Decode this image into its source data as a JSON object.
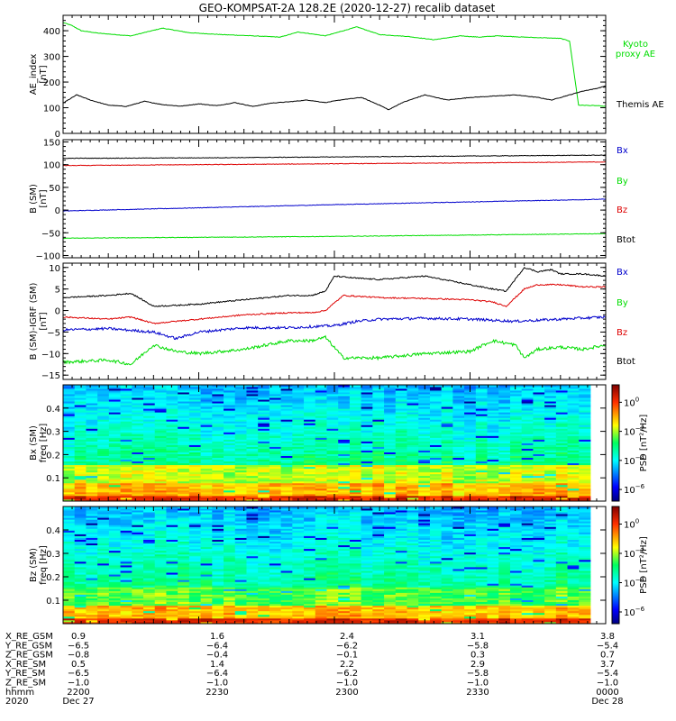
{
  "title": "GEO-KOMPSAT-2A 128.2E (2020-12-27) recalib dataset",
  "colors": {
    "black": "#000000",
    "green": "#00dd00",
    "red": "#dd0000",
    "blue": "#0000cc"
  },
  "chart_data": [
    {
      "type": "line",
      "ylabel_lines": [
        "AE_index",
        "[nT]"
      ],
      "ylim": [
        0,
        460
      ],
      "yticks": [
        0,
        100,
        200,
        300,
        400
      ],
      "x_range_minutes": [
        0,
        120
      ],
      "legend_placement": "right",
      "series": [
        {
          "name": "Kyoto proxy AE",
          "label_lines": [
            "Kyoto",
            "proxy AE"
          ],
          "color": "#00dd00",
          "x": [
            0,
            2,
            4,
            8,
            15,
            22,
            28,
            35,
            42,
            48,
            52,
            58,
            65,
            70,
            76,
            82,
            88,
            92,
            96,
            102,
            110,
            112,
            114,
            118,
            120
          ],
          "y": [
            432,
            420,
            400,
            390,
            380,
            410,
            392,
            385,
            380,
            375,
            395,
            380,
            415,
            385,
            378,
            365,
            380,
            375,
            380,
            375,
            370,
            360,
            110,
            108,
            105
          ]
        },
        {
          "name": "Themis AE",
          "label_lines": [
            "Themis AE"
          ],
          "color": "#000000",
          "x": [
            0,
            3,
            6,
            10,
            14,
            18,
            22,
            26,
            30,
            34,
            38,
            42,
            46,
            50,
            54,
            58,
            62,
            66,
            70,
            72,
            75,
            80,
            85,
            90,
            95,
            100,
            105,
            108,
            112,
            115,
            118,
            120
          ],
          "y": [
            118,
            150,
            130,
            110,
            105,
            125,
            112,
            106,
            115,
            108,
            120,
            105,
            118,
            123,
            130,
            120,
            132,
            140,
            110,
            92,
            120,
            150,
            130,
            140,
            145,
            150,
            140,
            130,
            150,
            165,
            175,
            185
          ]
        }
      ]
    },
    {
      "type": "line",
      "ylabel_lines": [
        "B (SM)",
        "[nT]"
      ],
      "ylim": [
        -105,
        155
      ],
      "yticks": [
        -100,
        -50,
        0,
        50,
        100,
        150
      ],
      "x_range_minutes": [
        0,
        120
      ],
      "legend_placement": "right",
      "series": [
        {
          "name": "Bx",
          "color": "#0000cc",
          "x": [
            0,
            30,
            60,
            90,
            120
          ],
          "y": [
            -2,
            5,
            12,
            18,
            24
          ]
        },
        {
          "name": "By",
          "color": "#00dd00",
          "x": [
            0,
            30,
            60,
            90,
            120
          ],
          "y": [
            -62,
            -60,
            -58,
            -55,
            -52
          ]
        },
        {
          "name": "Bz",
          "color": "#dd0000",
          "x": [
            0,
            30,
            60,
            90,
            120
          ],
          "y": [
            98,
            100,
            102,
            104,
            106
          ]
        },
        {
          "name": "Btot",
          "color": "#000000",
          "x": [
            0,
            30,
            60,
            90,
            120
          ],
          "y": [
            114,
            115,
            117,
            119,
            121
          ]
        }
      ]
    },
    {
      "type": "line",
      "ylabel_lines": [
        "B (SM)-IGRF (SM)",
        "[nT]"
      ],
      "ylim": [
        -16,
        11
      ],
      "yticks": [
        -15,
        -10,
        -5,
        0,
        5,
        10
      ],
      "x_range_minutes": [
        0,
        120
      ],
      "legend_placement": "right",
      "series": [
        {
          "name": "Bx",
          "color": "#0000cc",
          "x": [
            0,
            10,
            20,
            25,
            30,
            40,
            50,
            60,
            65,
            70,
            80,
            90,
            100,
            110,
            120
          ],
          "y": [
            -4.5,
            -4.2,
            -5,
            -6.5,
            -5,
            -4,
            -4,
            -3.5,
            -2.5,
            -2,
            -1.8,
            -2,
            -2.5,
            -2,
            -1.5
          ]
        },
        {
          "name": "By",
          "color": "#00dd00",
          "x": [
            0,
            10,
            15,
            20,
            25,
            30,
            40,
            50,
            55,
            58,
            62,
            65,
            70,
            80,
            90,
            95,
            100,
            102,
            105,
            110,
            115,
            120
          ],
          "y": [
            -12,
            -11.5,
            -12.5,
            -8,
            -9.5,
            -10,
            -9,
            -7,
            -7,
            -6.2,
            -11,
            -11,
            -11,
            -10,
            -9.5,
            -7,
            -8,
            -11,
            -9,
            -8.5,
            -9,
            -8
          ]
        },
        {
          "name": "Bz",
          "color": "#dd0000",
          "x": [
            0,
            10,
            15,
            20,
            25,
            30,
            40,
            50,
            55,
            58,
            62,
            70,
            80,
            90,
            95,
            98,
            102,
            105,
            110,
            115,
            120
          ],
          "y": [
            -1.5,
            -2,
            -1.5,
            -3,
            -2.5,
            -2,
            -1,
            -0.5,
            -0.5,
            0,
            3.5,
            3,
            2.8,
            2.5,
            2,
            1,
            5,
            6,
            6,
            5.5,
            5.5
          ]
        },
        {
          "name": "Btot",
          "color": "#000000",
          "x": [
            0,
            10,
            15,
            20,
            25,
            30,
            40,
            50,
            55,
            58,
            60,
            65,
            70,
            80,
            90,
            95,
            98,
            102,
            105,
            108,
            110,
            115,
            120
          ],
          "y": [
            3,
            3.5,
            4,
            1,
            1.2,
            1.5,
            2.5,
            3.5,
            3.5,
            4.5,
            8,
            7.5,
            7.2,
            8,
            6,
            5,
            4.5,
            10,
            9,
            9.5,
            8.5,
            8.5,
            8
          ]
        }
      ]
    },
    {
      "type": "heatmap",
      "ylabel_lines": [
        "Bx (SM)",
        "freq [Hz]"
      ],
      "ylim": [
        0,
        0.5
      ],
      "yticks": [
        0.1,
        0.2,
        0.3,
        0.4
      ],
      "x_range_minutes": [
        0,
        120
      ],
      "colorbar_label": "PSD [nT²/Hz]",
      "colorbar_tick_exponents": [
        0,
        -2,
        -4,
        -6
      ],
      "colorbar_range_exponents": [
        -6.8,
        1.2
      ]
    },
    {
      "type": "heatmap",
      "ylabel_lines": [
        "Bz (SM)",
        "freq [Hz]"
      ],
      "ylim": [
        0,
        0.5
      ],
      "yticks": [
        0.1,
        0.2,
        0.3,
        0.4
      ],
      "x_range_minutes": [
        0,
        120
      ],
      "colorbar_label": "PSD [nT²/Hz]",
      "colorbar_tick_exponents": [
        0,
        -2,
        -4,
        -6
      ],
      "colorbar_range_exponents": [
        -6.8,
        1.2
      ]
    }
  ],
  "ephemeris": {
    "labels": [
      "X_RE_GSM",
      "Y_RE_GSM",
      "Z_RE_GSM",
      "X_RE_SM",
      "Y_RE_SM",
      "Z_RE_SM",
      "hhmm",
      "2020"
    ],
    "columns": [
      [
        "0.9",
        "−6.5",
        "−0.8",
        "0.5",
        "−6.5",
        "−1.0",
        "2200",
        "Dec 27"
      ],
      [
        "1.6",
        "−6.4",
        "−0.4",
        "1.4",
        "−6.4",
        "−1.0",
        "2230",
        ""
      ],
      [
        "2.4",
        "−6.2",
        "−0.1",
        "2.2",
        "−6.2",
        "−1.0",
        "2300",
        ""
      ],
      [
        "3.1",
        "−5.8",
        "0.3",
        "2.9",
        "−5.8",
        "−1.0",
        "2330",
        ""
      ],
      [
        "3.8",
        "−5.4",
        "0.7",
        "3.7",
        "−5.4",
        "−1.0",
        "0000",
        "Dec 28"
      ]
    ]
  }
}
